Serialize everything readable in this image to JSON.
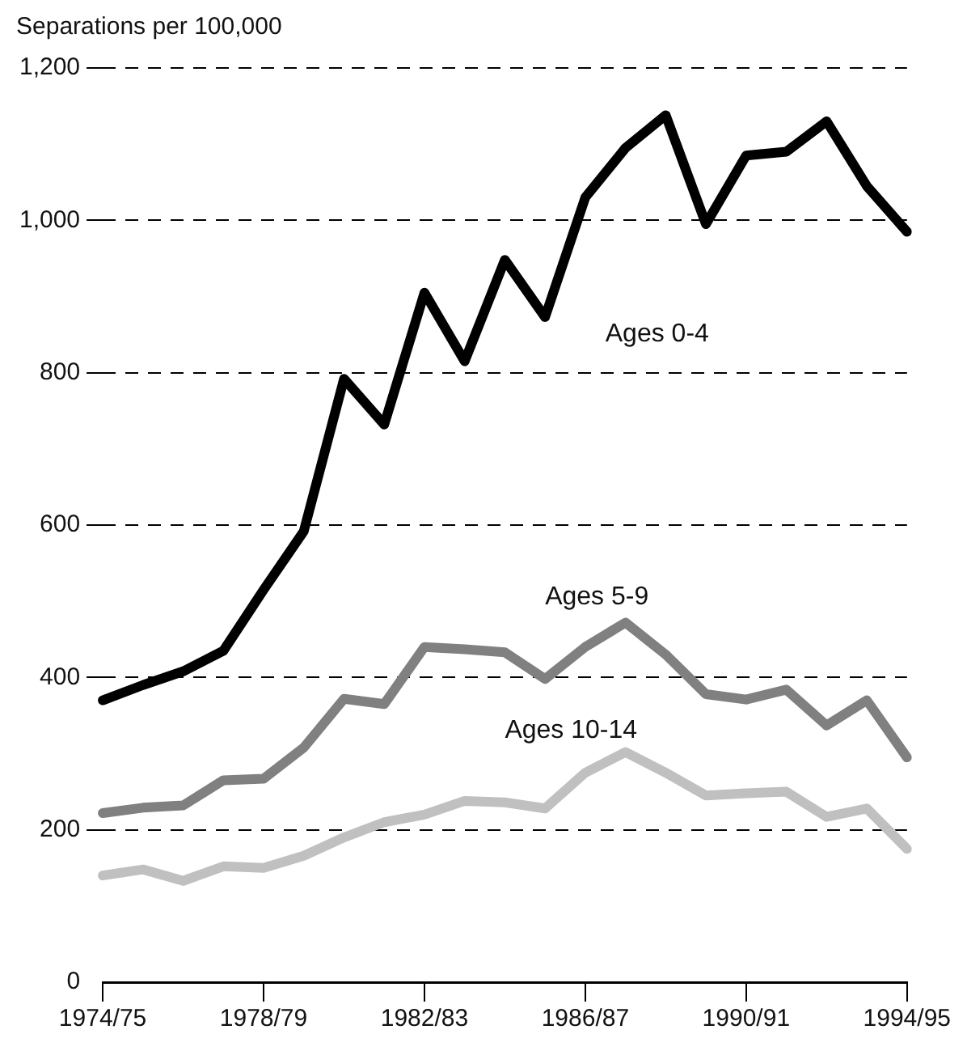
{
  "chart_data": {
    "type": "line",
    "ylabel": "Separations per 100,000",
    "categories": [
      "1974/75",
      null,
      null,
      null,
      "1978/79",
      null,
      null,
      null,
      "1982/83",
      null,
      null,
      null,
      "1986/87",
      null,
      null,
      null,
      "1990/91",
      null,
      null,
      null,
      "1994/95"
    ],
    "series": [
      {
        "name": "Ages 0-4",
        "color": "#000000",
        "values": [
          370,
          390,
          408,
          435,
          515,
          592,
          792,
          732,
          905,
          815,
          948,
          873,
          1030,
          1095,
          1138,
          995,
          1085,
          1090,
          1130,
          1045,
          985
        ]
      },
      {
        "name": "Ages 5-9",
        "color": "#808080",
        "values": [
          222,
          229,
          232,
          265,
          267,
          308,
          372,
          365,
          440,
          437,
          433,
          398,
          440,
          472,
          430,
          378,
          371,
          384,
          337,
          370,
          295
        ]
      },
      {
        "name": "Ages 10-14",
        "color": "#c0c0c0",
        "values": [
          140,
          148,
          133,
          152,
          150,
          166,
          190,
          210,
          220,
          238,
          236,
          228,
          275,
          302,
          275,
          245,
          248,
          250,
          217,
          228,
          175
        ]
      }
    ],
    "ylim": [
      0,
      1200
    ],
    "yticks": [
      0,
      200,
      400,
      600,
      800,
      {
        "value": 1000,
        "label": "1,000"
      },
      {
        "value": 1200,
        "label": "1,200"
      }
    ],
    "grid": "y",
    "legend": false,
    "marker": "none",
    "line_style": "solid"
  }
}
